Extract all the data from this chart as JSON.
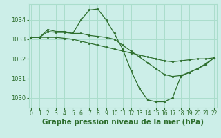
{
  "background_color": "#cceee8",
  "grid_color": "#aaddcc",
  "line_color": "#2d6e2d",
  "marker_color": "#2d6e2d",
  "xlabel": "Graphe pression niveau de la mer (hPa)",
  "xlabel_fontsize": 7.5,
  "ylim": [
    1029.5,
    1034.8
  ],
  "xlim": [
    -0.3,
    22.3
  ],
  "yticks": [
    1030,
    1031,
    1032,
    1033,
    1034
  ],
  "xticks": [
    0,
    1,
    2,
    3,
    4,
    5,
    6,
    7,
    8,
    9,
    10,
    11,
    12,
    13,
    14,
    15,
    16,
    17,
    18,
    19,
    20,
    21,
    22
  ],
  "series": [
    [
      1033.1,
      1033.1,
      1033.5,
      1033.4,
      1033.4,
      1033.3,
      1034.0,
      1034.5,
      1034.55,
      1034.0,
      1033.3,
      1032.5,
      1031.4,
      1030.5,
      1029.9,
      1029.8,
      1029.8,
      1030.0,
      1031.1,
      1031.3,
      1031.5,
      1031.75,
      1032.05
    ],
    [
      1033.1,
      1033.1,
      1033.1,
      1033.1,
      1033.05,
      1033.0,
      1032.9,
      1032.8,
      1032.7,
      1032.6,
      1032.5,
      1032.4,
      1032.3,
      1032.2,
      1032.1,
      1032.0,
      1031.9,
      1031.85,
      1031.9,
      1031.95,
      1032.0,
      1032.0,
      1032.05
    ],
    [
      1033.1,
      1033.1,
      1033.4,
      1033.35,
      1033.35,
      1033.3,
      1033.3,
      1033.2,
      1033.15,
      1033.1,
      1033.0,
      1032.7,
      1032.4,
      1032.1,
      1031.8,
      1031.5,
      1031.2,
      1031.1,
      1031.15,
      1031.3,
      1031.5,
      1031.7,
      1032.05
    ]
  ]
}
